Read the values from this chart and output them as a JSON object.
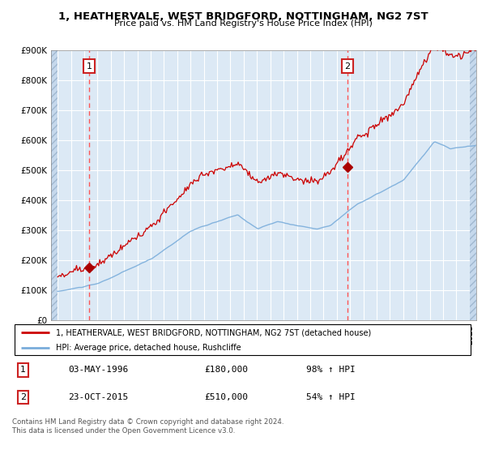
{
  "title": "1, HEATHERVALE, WEST BRIDGFORD, NOTTINGHAM, NG2 7ST",
  "subtitle": "Price paid vs. HM Land Registry's House Price Index (HPI)",
  "plot_bg_color": "#dce9f5",
  "hatch_color": "#c5d8ec",
  "grid_color": "#b8cfe0",
  "sale1_date_num": 1996.37,
  "sale1_price": 180000,
  "sale1_label": "1",
  "sale2_date_num": 2015.81,
  "sale2_price": 510000,
  "sale2_label": "2",
  "legend_line1": "1, HEATHERVALE, WEST BRIDGFORD, NOTTINGHAM, NG2 7ST (detached house)",
  "legend_line2": "HPI: Average price, detached house, Rushcliffe",
  "table_row1": [
    "1",
    "03-MAY-1996",
    "£180,000",
    "98% ↑ HPI"
  ],
  "table_row2": [
    "2",
    "23-OCT-2015",
    "£510,000",
    "54% ↑ HPI"
  ],
  "footer": "Contains HM Land Registry data © Crown copyright and database right 2024.\nThis data is licensed under the Open Government Licence v3.0.",
  "price_line_color": "#cc0000",
  "hpi_line_color": "#7aaddb",
  "sale_marker_color": "#aa0000",
  "vline_color": "#ff5555",
  "ylim_min": 0,
  "ylim_max": 900000,
  "xlim_min": 1993.5,
  "xlim_max": 2025.5
}
